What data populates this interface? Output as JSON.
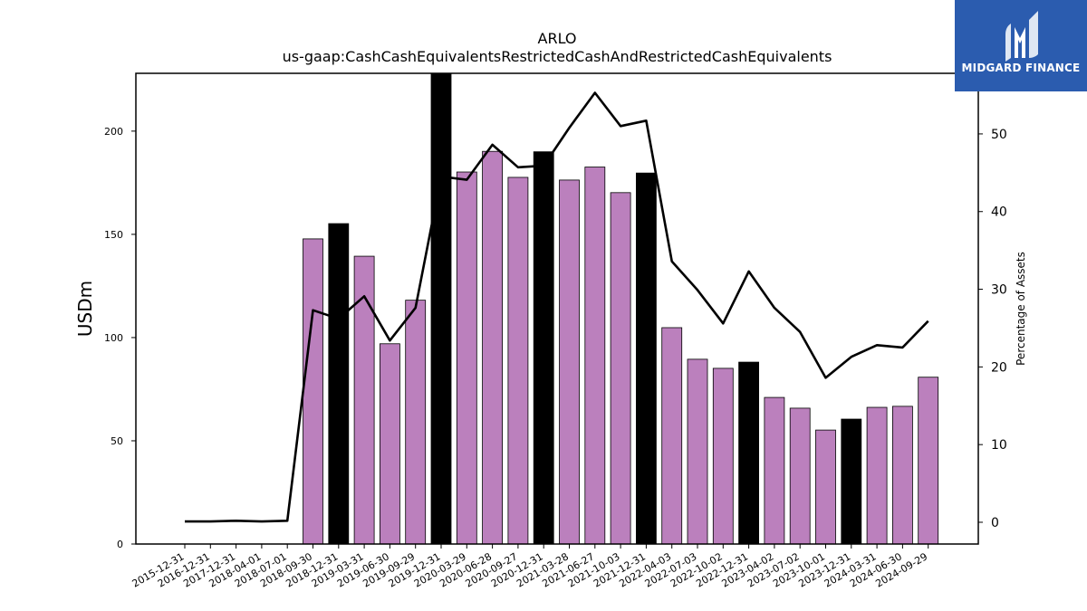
{
  "brand": {
    "name": "MIDGARD FINANCE",
    "logo_icon": "midgard-m-icon",
    "background": "#2b5caf"
  },
  "chart_data": {
    "type": "bar",
    "title": "ARLO",
    "subtitle": "us-gaap:CashCashEquivalentsRestrictedCashAndRestrictedCashEquivalents",
    "ylabel": "USDm",
    "y2label": "Percentage of Assets",
    "ylim": [
      0,
      228
    ],
    "y2lim": [
      -2.8,
      57.8
    ],
    "yticks": [
      0,
      50,
      100,
      150,
      200
    ],
    "y2ticks": [
      0,
      10,
      20,
      30,
      40,
      50
    ],
    "legend": "none",
    "grid": false,
    "categories": [
      "2015-12-31",
      "2016-12-31",
      "2017-12-31",
      "2018-04-01",
      "2018-07-01",
      "2018-09-30",
      "2018-12-31",
      "2019-03-31",
      "2019-06-30",
      "2019-09-29",
      "2019-12-31",
      "2020-03-29",
      "2020-06-28",
      "2020-09-27",
      "2020-12-31",
      "2021-03-28",
      "2021-06-27",
      "2021-10-03",
      "2021-12-31",
      "2022-04-03",
      "2022-07-03",
      "2022-10-02",
      "2022-12-31",
      "2023-04-02",
      "2023-07-02",
      "2023-10-01",
      "2023-12-31",
      "2024-03-31",
      "2024-06-30",
      "2024-09-29"
    ],
    "series": [
      {
        "axis": "left",
        "kind": "bar",
        "values": [
          null,
          null,
          null,
          null,
          null,
          147.8,
          155.2,
          139.4,
          97.0,
          118.1,
          228.0,
          180.2,
          190.2,
          177.6,
          190.0,
          176.3,
          182.6,
          170.2,
          179.7,
          104.8,
          89.5,
          85.1,
          88.1,
          71.0,
          65.8,
          55.2,
          60.5,
          66.2,
          66.7,
          80.8
        ],
        "fiscal_year_end": [
          false,
          false,
          false,
          false,
          false,
          false,
          true,
          false,
          false,
          false,
          true,
          false,
          false,
          false,
          true,
          false,
          false,
          false,
          true,
          false,
          false,
          false,
          true,
          false,
          false,
          false,
          true,
          false,
          false,
          false
        ],
        "color": "#bb80bd",
        "highlight_color": "#000000"
      },
      {
        "axis": "right",
        "kind": "line",
        "values": [
          0.1,
          0.1,
          0.2,
          0.1,
          0.2,
          27.3,
          26.2,
          29.1,
          23.4,
          27.6,
          44.5,
          44.1,
          48.6,
          45.7,
          45.9,
          50.8,
          55.3,
          51.0,
          51.7,
          33.6,
          29.9,
          25.6,
          32.3,
          27.6,
          24.5,
          18.6,
          21.3,
          22.8,
          22.5,
          25.9
        ],
        "color": "#000000"
      }
    ]
  }
}
